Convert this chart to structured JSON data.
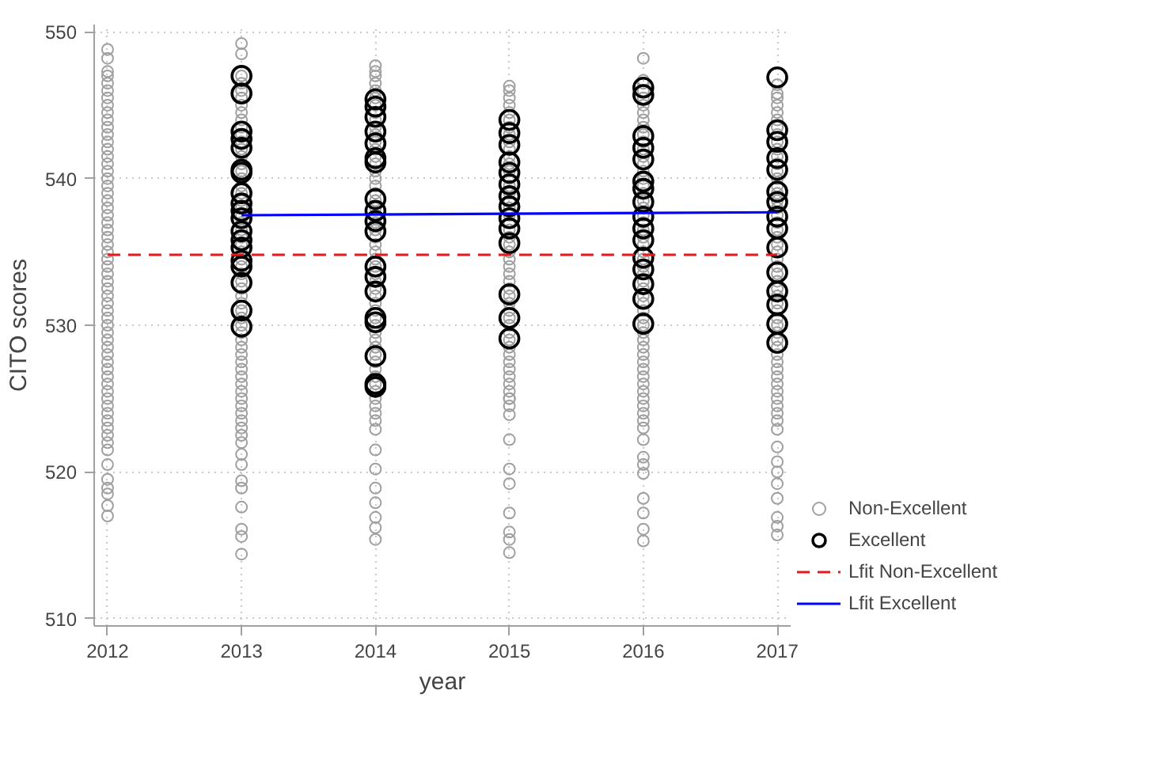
{
  "chart_data": {
    "type": "scatter",
    "xlabel": "year",
    "ylabel": "CITO scores",
    "xlim": [
      2011.9,
      2017.1
    ],
    "ylim": [
      509.5,
      550.5
    ],
    "xticks": [
      2012,
      2013,
      2014,
      2015,
      2016,
      2017
    ],
    "yticks": [
      510,
      520,
      530,
      540,
      550
    ],
    "grid": true,
    "legend": "right",
    "series": [
      {
        "name": "Non-Excellent",
        "color": "#a0a0a0",
        "marker": "circle",
        "x": [
          2012,
          2012,
          2012,
          2012,
          2012,
          2012,
          2012,
          2012,
          2012,
          2012,
          2012,
          2012,
          2012,
          2012,
          2012,
          2012,
          2012,
          2012,
          2012,
          2012,
          2012,
          2012,
          2012,
          2012,
          2012,
          2012,
          2012,
          2012,
          2012,
          2012,
          2012,
          2012,
          2012,
          2012,
          2012,
          2012,
          2012,
          2012,
          2012,
          2012,
          2012,
          2012,
          2012,
          2012,
          2012,
          2012,
          2012,
          2012,
          2012,
          2012,
          2012,
          2012,
          2012,
          2012,
          2012,
          2012,
          2012,
          2012,
          2012,
          2012,
          2012,
          2013,
          2013,
          2013,
          2013,
          2013,
          2013,
          2013,
          2013,
          2013,
          2013,
          2013,
          2013,
          2013,
          2013,
          2013,
          2013,
          2013,
          2013,
          2013,
          2013,
          2013,
          2013,
          2013,
          2013,
          2013,
          2013,
          2013,
          2013,
          2013,
          2013,
          2013,
          2013,
          2013,
          2013,
          2013,
          2013,
          2013,
          2013,
          2013,
          2013,
          2013,
          2013,
          2013,
          2013,
          2013,
          2013,
          2013,
          2013,
          2013,
          2013,
          2013,
          2013,
          2013,
          2013,
          2013,
          2013,
          2013,
          2013,
          2013,
          2013,
          2013,
          2014,
          2014,
          2014,
          2014,
          2014,
          2014,
          2014,
          2014,
          2014,
          2014,
          2014,
          2014,
          2014,
          2014,
          2014,
          2014,
          2014,
          2014,
          2014,
          2014,
          2014,
          2014,
          2014,
          2014,
          2014,
          2014,
          2014,
          2014,
          2014,
          2014,
          2014,
          2014,
          2014,
          2014,
          2014,
          2014,
          2014,
          2014,
          2014,
          2014,
          2014,
          2014,
          2014,
          2014,
          2014,
          2014,
          2014,
          2014,
          2014,
          2014,
          2014,
          2014,
          2014,
          2014,
          2014,
          2014,
          2014,
          2014,
          2015,
          2015,
          2015,
          2015,
          2015,
          2015,
          2015,
          2015,
          2015,
          2015,
          2015,
          2015,
          2015,
          2015,
          2015,
          2015,
          2015,
          2015,
          2015,
          2015,
          2015,
          2015,
          2015,
          2015,
          2015,
          2015,
          2015,
          2015,
          2015,
          2015,
          2015,
          2015,
          2015,
          2015,
          2015,
          2015,
          2015,
          2015,
          2015,
          2015,
          2015,
          2015,
          2015,
          2015,
          2015,
          2015,
          2015,
          2015,
          2015,
          2015,
          2015,
          2015,
          2015,
          2015,
          2016,
          2016,
          2016,
          2016,
          2016,
          2016,
          2016,
          2016,
          2016,
          2016,
          2016,
          2016,
          2016,
          2016,
          2016,
          2016,
          2016,
          2016,
          2016,
          2016,
          2016,
          2016,
          2016,
          2016,
          2016,
          2016,
          2016,
          2016,
          2016,
          2016,
          2016,
          2016,
          2016,
          2016,
          2016,
          2016,
          2016,
          2016,
          2016,
          2016,
          2016,
          2016,
          2016,
          2016,
          2016,
          2016,
          2016,
          2016,
          2016,
          2016,
          2016,
          2016,
          2016,
          2016,
          2016,
          2016,
          2016,
          2016,
          2017,
          2017,
          2017,
          2017,
          2017,
          2017,
          2017,
          2017,
          2017,
          2017,
          2017,
          2017,
          2017,
          2017,
          2017,
          2017,
          2017,
          2017,
          2017,
          2017,
          2017,
          2017,
          2017,
          2017,
          2017,
          2017,
          2017,
          2017,
          2017,
          2017,
          2017,
          2017,
          2017,
          2017,
          2017,
          2017,
          2017,
          2017,
          2017,
          2017,
          2017,
          2017,
          2017,
          2017,
          2017,
          2017,
          2017,
          2017,
          2017,
          2017,
          2017,
          2017,
          2017,
          2017,
          2017,
          2017
        ],
        "values": [
          548.8,
          548.2,
          547.3,
          547,
          546.5,
          546,
          545.5,
          545,
          544.5,
          544,
          543.5,
          543,
          542.5,
          542,
          541.5,
          541,
          540.5,
          540,
          539.5,
          539,
          538.5,
          538,
          537.5,
          537,
          536.5,
          536,
          535.5,
          535,
          534.5,
          534,
          533.5,
          533,
          532.5,
          532,
          531.5,
          531,
          530.5,
          530,
          529.5,
          529,
          528.5,
          528,
          527.5,
          527,
          526.5,
          526,
          525.5,
          525,
          524.5,
          524,
          523.5,
          523,
          522.5,
          521.5,
          520.5,
          519.5,
          518.9,
          518.5,
          517.7,
          517,
          522,
          549.2,
          548.5,
          547,
          546.5,
          546,
          545.5,
          545,
          544.5,
          544,
          543.5,
          543,
          542.5,
          542,
          541.5,
          541,
          540.5,
          540,
          539.5,
          539,
          538.5,
          538,
          537.5,
          537,
          536.5,
          536,
          535.5,
          535,
          534.5,
          534,
          533.5,
          533,
          532.5,
          532,
          531.5,
          531,
          530.5,
          530,
          529.5,
          529,
          528.5,
          528,
          527.5,
          527,
          526.5,
          526,
          525.5,
          525,
          524.5,
          524,
          523.5,
          523,
          522.5,
          522,
          521.2,
          520.5,
          519.4,
          518.9,
          517.6,
          516.1,
          515.6,
          514.4,
          547.7,
          547.3,
          547,
          546.5,
          546,
          545.5,
          545,
          544.5,
          544,
          543.5,
          543,
          542.5,
          542,
          541.5,
          541,
          540.5,
          540,
          539.5,
          539,
          538.5,
          538,
          537.5,
          537,
          536.5,
          536,
          535.5,
          535,
          534.5,
          534,
          533.5,
          533,
          532.5,
          532,
          531.5,
          531,
          530.5,
          530,
          529.5,
          529,
          528.5,
          528,
          527.5,
          527,
          526.5,
          526,
          525.5,
          525,
          524.5,
          524,
          523.5,
          522.9,
          521.5,
          520.2,
          518.9,
          517.9,
          516.9,
          516.2,
          515.4,
          546.3,
          546,
          545.5,
          545,
          544.5,
          544,
          543.5,
          543,
          542.5,
          542,
          541.5,
          541,
          540.5,
          540,
          539.5,
          539,
          538.5,
          538,
          537.5,
          537,
          536.5,
          536,
          535.5,
          535,
          534.5,
          534,
          533.5,
          533,
          532.5,
          532,
          531.5,
          531,
          530.5,
          530,
          529.5,
          529,
          528.5,
          528,
          527.5,
          527,
          526.5,
          526,
          525.5,
          525,
          524.5,
          523.9,
          522.2,
          520.2,
          519.2,
          517.2,
          515.9,
          515.4,
          514.5,
          525,
          548.2,
          546.7,
          546.5,
          546,
          545.5,
          545,
          544.5,
          544,
          543.5,
          543,
          542.5,
          542,
          541.5,
          541,
          540.5,
          540,
          539.5,
          539,
          538.5,
          538,
          537.5,
          537,
          536.5,
          536,
          535.5,
          535,
          534.5,
          534,
          533.5,
          533,
          532.5,
          532,
          531.5,
          531,
          530.5,
          530,
          529.5,
          529,
          528.5,
          528,
          527.5,
          527,
          526.5,
          526,
          525.5,
          525,
          524.5,
          524,
          523.5,
          523,
          522.2,
          521,
          520.5,
          519.9,
          518.2,
          517.2,
          516.1,
          515.3,
          545.8,
          545.5,
          545,
          544.5,
          544,
          543.5,
          543,
          542.5,
          542,
          541.5,
          541,
          540.5,
          540,
          539.5,
          539,
          538.5,
          538,
          537.5,
          537,
          536.5,
          536,
          535.5,
          535,
          534.5,
          534,
          533.5,
          533,
          532.5,
          532,
          531.5,
          531,
          530.5,
          530,
          529.5,
          529,
          528.5,
          528,
          527.5,
          527,
          526.5,
          526,
          525.5,
          525,
          524.5,
          524,
          523.5,
          522.9,
          521.7,
          520.7,
          520,
          519.2,
          518.2,
          516.9,
          516.3,
          515.7,
          546.4
        ]
      },
      {
        "name": "Excellent",
        "color": "#000000",
        "marker": "circle",
        "x": [
          2013,
          2013,
          2013,
          2013,
          2013,
          2013,
          2013,
          2013,
          2013,
          2013,
          2013,
          2013,
          2013,
          2013,
          2013,
          2013,
          2013,
          2013,
          2013,
          2014,
          2014,
          2014,
          2014,
          2014,
          2014,
          2014,
          2014,
          2014,
          2014,
          2014,
          2014,
          2014,
          2014,
          2014,
          2014,
          2014,
          2014,
          2014,
          2015,
          2015,
          2015,
          2015,
          2015,
          2015,
          2015,
          2015,
          2015,
          2015,
          2015,
          2015,
          2015,
          2015,
          2016,
          2016,
          2016,
          2016,
          2016,
          2016,
          2016,
          2016,
          2016,
          2016,
          2016,
          2016,
          2016,
          2016,
          2016,
          2016,
          2017,
          2017,
          2017,
          2017,
          2017,
          2017,
          2017,
          2017,
          2017,
          2017,
          2017,
          2017,
          2017,
          2017,
          2017
        ],
        "values": [
          547,
          545.8,
          543.2,
          542.7,
          542.1,
          540.6,
          540.4,
          539,
          538.3,
          537.8,
          537.3,
          536.4,
          535.8,
          535.3,
          534.4,
          534,
          532.9,
          531,
          529.9,
          545.4,
          544.9,
          544.2,
          543.2,
          542.4,
          541.4,
          541.1,
          538.6,
          537.8,
          537.1,
          536.4,
          534,
          533.3,
          532.3,
          530.5,
          530.2,
          527.9,
          526,
          525.8,
          544,
          543.1,
          542.3,
          541.1,
          540.4,
          539.6,
          538.8,
          538.1,
          537.3,
          536.6,
          535.6,
          532.1,
          530.5,
          529.1,
          546.2,
          545.7,
          542.9,
          542.1,
          541.3,
          539.8,
          539.3,
          538.4,
          537.4,
          536.6,
          535.8,
          534.6,
          533.8,
          532.8,
          531.8,
          530.1,
          546.9,
          543.3,
          542.5,
          541.4,
          540.6,
          539.1,
          538.4,
          537.4,
          536.6,
          535.3,
          533.6,
          532.3,
          531.4,
          530.1,
          528.8
        ]
      },
      {
        "name": "Lfit Non-Excellent",
        "type": "line",
        "color": "#e8191c",
        "line_style": "dashed",
        "marker": "none",
        "x": [
          2012,
          2017
        ],
        "values": [
          534.8,
          534.8
        ]
      },
      {
        "name": "Lfit Excellent",
        "type": "line",
        "color": "#0000ff",
        "line_style": "solid",
        "marker": "none",
        "x": [
          2013,
          2017
        ],
        "values": [
          537.5,
          537.7
        ]
      }
    ]
  }
}
